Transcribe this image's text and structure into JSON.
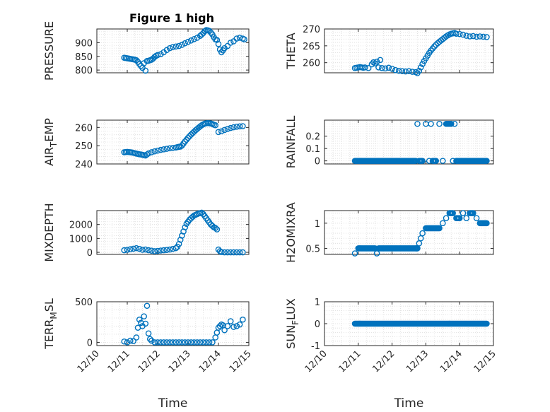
{
  "figure": {
    "title": "Figure 1 high",
    "marker_color": "#0072bd"
  },
  "chart_data": [
    {
      "type": "scatter",
      "panel": "pressure",
      "title": "Figure 1 high",
      "ylabel": "PRESSURE",
      "xlabel": "",
      "xlim": [
        10,
        15
      ],
      "ylim": [
        790,
        950
      ],
      "yticks": [
        800,
        850,
        900
      ],
      "ytick_labels": [
        "800",
        "850",
        "900"
      ],
      "xticks": [
        10,
        11,
        12,
        13,
        14,
        15
      ],
      "xtick_labels": [],
      "grid": true,
      "x": [
        10.9,
        10.95,
        11.0,
        11.05,
        11.1,
        11.15,
        11.2,
        11.25,
        11.3,
        11.35,
        11.4,
        11.45,
        11.5,
        11.55,
        11.6,
        11.65,
        11.7,
        11.75,
        11.8,
        11.85,
        11.9,
        11.95,
        12.0,
        12.1,
        12.2,
        12.3,
        12.4,
        12.5,
        12.6,
        12.7,
        12.8,
        12.9,
        13.0,
        13.1,
        13.2,
        13.3,
        13.4,
        13.45,
        13.5,
        13.55,
        13.6,
        13.65,
        13.7,
        13.75,
        13.8,
        13.85,
        13.9,
        13.95,
        14.0,
        14.05,
        14.1,
        14.15,
        14.2,
        14.3,
        14.4,
        14.5,
        14.6,
        14.7,
        14.8,
        14.85
      ],
      "y": [
        845,
        844,
        843,
        842,
        841,
        840,
        839,
        838,
        836,
        830,
        822,
        815,
        808,
        825,
        798,
        833,
        834,
        836,
        838,
        842,
        848,
        852,
        855,
        858,
        865,
        873,
        880,
        884,
        886,
        888,
        892,
        898,
        903,
        908,
        913,
        918,
        925,
        930,
        935,
        942,
        946,
        945,
        943,
        937,
        930,
        920,
        912,
        910,
        895,
        875,
        865,
        872,
        880,
        888,
        900,
        905,
        915,
        918,
        915,
        912
      ]
    },
    {
      "type": "scatter",
      "panel": "theta",
      "ylabel": "THETA",
      "xlabel": "",
      "xlim": [
        10,
        15
      ],
      "ylim": [
        257,
        270
      ],
      "yticks": [
        260,
        265,
        270
      ],
      "ytick_labels": [
        "260",
        "265",
        "270"
      ],
      "xticks": [
        10,
        11,
        12,
        13,
        14,
        15
      ],
      "xtick_labels": [],
      "grid": true,
      "x": [
        10.9,
        10.95,
        11.0,
        11.05,
        11.1,
        11.15,
        11.2,
        11.3,
        11.4,
        11.45,
        11.5,
        11.55,
        11.6,
        11.65,
        11.7,
        11.8,
        11.9,
        12.0,
        12.1,
        12.2,
        12.3,
        12.4,
        12.5,
        12.6,
        12.7,
        12.75,
        12.8,
        12.85,
        12.9,
        12.95,
        13.0,
        13.05,
        13.1,
        13.15,
        13.2,
        13.25,
        13.3,
        13.35,
        13.4,
        13.45,
        13.5,
        13.55,
        13.6,
        13.65,
        13.7,
        13.75,
        13.8,
        13.85,
        13.9,
        14.0,
        14.1,
        14.2,
        14.3,
        14.4,
        14.5,
        14.6,
        14.7,
        14.8
      ],
      "y": [
        258.4,
        258.5,
        258.6,
        258.7,
        258.6,
        258.5,
        258.6,
        258.4,
        259.5,
        260.1,
        259.8,
        260.3,
        258.6,
        260.8,
        258.4,
        258.3,
        258.5,
        258.2,
        257.8,
        257.6,
        257.5,
        257.4,
        257.5,
        257.3,
        257.2,
        256.9,
        257.6,
        258.6,
        259.6,
        260.5,
        261.3,
        262.1,
        262.9,
        263.6,
        264.2,
        264.8,
        265.3,
        265.8,
        266.2,
        266.6,
        267.0,
        267.4,
        267.8,
        268.1,
        268.4,
        268.6,
        268.7,
        268.8,
        268.6,
        268.5,
        268.3,
        268.0,
        267.8,
        267.9,
        267.7,
        267.8,
        267.7,
        267.6
      ]
    },
    {
      "type": "scatter",
      "panel": "air_temp",
      "ylabel": "AIR_TEMP",
      "ylabel_parts": [
        "AIR",
        "T",
        "EMP"
      ],
      "xlabel": "",
      "xlim": [
        10,
        15
      ],
      "ylim": [
        240,
        264
      ],
      "yticks": [
        240,
        250,
        260
      ],
      "ytick_labels": [
        "240",
        "250",
        "260"
      ],
      "xticks": [
        10,
        11,
        12,
        13,
        14,
        15
      ],
      "xtick_labels": [],
      "grid": true,
      "x": [
        10.9,
        10.95,
        11.0,
        11.05,
        11.1,
        11.15,
        11.2,
        11.25,
        11.3,
        11.35,
        11.4,
        11.45,
        11.5,
        11.55,
        11.6,
        11.65,
        11.7,
        11.8,
        11.9,
        12.0,
        12.1,
        12.2,
        12.3,
        12.4,
        12.5,
        12.6,
        12.65,
        12.7,
        12.75,
        12.8,
        12.85,
        12.9,
        12.95,
        13.0,
        13.05,
        13.1,
        13.15,
        13.2,
        13.25,
        13.3,
        13.35,
        13.4,
        13.45,
        13.5,
        13.55,
        13.6,
        13.65,
        13.7,
        13.75,
        13.8,
        13.85,
        13.9,
        14.0,
        14.1,
        14.2,
        14.3,
        14.4,
        14.5,
        14.6,
        14.7,
        14.8
      ],
      "y": [
        246.4,
        246.5,
        246.6,
        246.5,
        246.4,
        246.3,
        246.1,
        245.9,
        245.7,
        245.5,
        245.3,
        245.2,
        245.0,
        244.8,
        244.6,
        245.2,
        245.8,
        246.4,
        246.9,
        247.3,
        247.7,
        248.0,
        248.3,
        248.6,
        248.8,
        249.0,
        249.2,
        249.4,
        249.5,
        250.1,
        251.2,
        252.3,
        253.3,
        254.3,
        255.2,
        256.1,
        256.9,
        257.7,
        258.5,
        259.2,
        259.9,
        260.6,
        261.2,
        261.7,
        262.1,
        262.3,
        262.4,
        262.3,
        262.2,
        261.9,
        261.5,
        261.2,
        257.5,
        257.9,
        258.6,
        259.2,
        259.7,
        260.1,
        260.4,
        260.6,
        260.7
      ]
    },
    {
      "type": "scatter",
      "panel": "rainfall",
      "ylabel": "RAINFALL",
      "xlabel": "",
      "xlim": [
        10,
        15
      ],
      "ylim": [
        -0.025,
        0.33
      ],
      "yticks": [
        0,
        0.1,
        0.2
      ],
      "ytick_labels": [
        "0",
        "0.1",
        "0.2"
      ],
      "xticks": [
        10,
        11,
        12,
        13,
        14,
        15
      ],
      "xtick_labels": [],
      "grid": true,
      "x": [
        10.9,
        11.0,
        11.1,
        11.2,
        11.3,
        11.4,
        11.5,
        11.6,
        11.7,
        11.8,
        11.9,
        12.0,
        12.1,
        12.2,
        12.3,
        12.4,
        12.5,
        12.6,
        12.7,
        12.75,
        12.8,
        12.9,
        13.0,
        13.1,
        13.15,
        13.2,
        13.3,
        13.4,
        13.5,
        13.6,
        13.65,
        13.7,
        13.75,
        13.8,
        13.85,
        13.9,
        14.0,
        14.1,
        14.2,
        14.3,
        14.4,
        14.5,
        14.6,
        14.7,
        14.8
      ],
      "y": [
        0,
        0,
        0,
        0,
        0,
        0,
        0,
        0,
        0,
        0,
        0,
        0,
        0,
        0,
        0,
        0,
        0,
        0,
        0,
        0.3,
        0,
        0,
        0.3,
        0,
        0.3,
        0,
        0,
        0.3,
        0,
        0.3,
        0.3,
        0.3,
        0.3,
        0,
        0.3,
        0,
        0,
        0,
        0,
        0,
        0,
        0,
        0,
        0,
        0
      ]
    },
    {
      "type": "scatter",
      "panel": "mixdepth",
      "ylabel": "MIXDEPTH",
      "xlabel": "",
      "xlim": [
        10,
        15
      ],
      "ylim": [
        -150,
        3000
      ],
      "yticks": [
        0,
        1000,
        2000
      ],
      "ytick_labels": [
        "0",
        "1000",
        "2000"
      ],
      "xticks": [
        10,
        11,
        12,
        13,
        14,
        15
      ],
      "xtick_labels": [],
      "grid": true,
      "x": [
        10.9,
        11.0,
        11.1,
        11.2,
        11.3,
        11.4,
        11.5,
        11.6,
        11.7,
        11.8,
        11.9,
        12.0,
        12.1,
        12.2,
        12.3,
        12.4,
        12.5,
        12.6,
        12.65,
        12.7,
        12.75,
        12.8,
        12.85,
        12.9,
        12.95,
        13.0,
        13.05,
        13.1,
        13.15,
        13.2,
        13.25,
        13.3,
        13.35,
        13.4,
        13.45,
        13.5,
        13.55,
        13.6,
        13.65,
        13.7,
        13.75,
        13.8,
        13.85,
        13.9,
        13.95,
        14.0,
        14.05,
        14.1,
        14.2,
        14.3,
        14.4,
        14.5,
        14.6,
        14.7,
        14.8
      ],
      "y": [
        150,
        180,
        220,
        260,
        300,
        250,
        180,
        200,
        150,
        120,
        80,
        100,
        130,
        150,
        170,
        200,
        250,
        300,
        400,
        600,
        900,
        1200,
        1500,
        1800,
        2050,
        2200,
        2350,
        2450,
        2550,
        2650,
        2700,
        2750,
        2800,
        2820,
        2850,
        2750,
        2600,
        2450,
        2300,
        2150,
        2000,
        1900,
        1800,
        1750,
        1650,
        200,
        80,
        20,
        0,
        0,
        0,
        0,
        0,
        0,
        0
      ]
    },
    {
      "type": "scatter",
      "panel": "h2omixra",
      "ylabel": "H2OMIXRA",
      "xlabel": "",
      "xlim": [
        10,
        15
      ],
      "ylim": [
        0.38,
        1.25
      ],
      "yticks": [
        0.5,
        1
      ],
      "ytick_labels": [
        "0.5",
        "1"
      ],
      "xticks": [
        10,
        11,
        12,
        13,
        14,
        15
      ],
      "xtick_labels": [],
      "grid": true,
      "x": [
        10.9,
        11.0,
        11.1,
        11.2,
        11.3,
        11.4,
        11.5,
        11.55,
        11.6,
        11.7,
        11.8,
        11.9,
        12.0,
        12.1,
        12.2,
        12.3,
        12.4,
        12.5,
        12.6,
        12.7,
        12.75,
        12.8,
        12.85,
        12.9,
        13.0,
        13.1,
        13.2,
        13.3,
        13.4,
        13.5,
        13.6,
        13.7,
        13.8,
        13.9,
        14.0,
        14.1,
        14.2,
        14.3,
        14.4,
        14.5,
        14.6,
        14.7,
        14.8
      ],
      "y": [
        0.4,
        0.5,
        0.5,
        0.5,
        0.5,
        0.5,
        0.5,
        0.4,
        0.5,
        0.5,
        0.5,
        0.5,
        0.5,
        0.5,
        0.5,
        0.5,
        0.5,
        0.5,
        0.5,
        0.5,
        0.5,
        0.6,
        0.7,
        0.8,
        0.9,
        0.9,
        0.9,
        0.9,
        0.9,
        1.0,
        1.1,
        1.2,
        1.2,
        1.1,
        1.1,
        1.2,
        1.1,
        1.2,
        1.2,
        1.1,
        1.0,
        1.0,
        1.0
      ]
    },
    {
      "type": "scatter",
      "panel": "terr_msl",
      "ylabel": "TERR_MSL",
      "ylabel_parts": [
        "TERR",
        "M",
        "SL"
      ],
      "xlabel": "Time",
      "xlim": [
        10,
        15
      ],
      "ylim": [
        -40,
        500
      ],
      "yticks": [
        0,
        500
      ],
      "ytick_labels": [
        "0",
        "500"
      ],
      "xticks": [
        10,
        11,
        12,
        13,
        14,
        15
      ],
      "xtick_labels": [
        "12/10",
        "12/11",
        "12/12",
        "12/13",
        "12/14",
        "12/15"
      ],
      "grid": true,
      "x": [
        10.9,
        11.0,
        11.1,
        11.2,
        11.3,
        11.35,
        11.4,
        11.45,
        11.5,
        11.55,
        11.6,
        11.65,
        11.7,
        11.75,
        11.8,
        11.9,
        12.0,
        12.1,
        12.2,
        12.3,
        12.4,
        12.5,
        12.6,
        12.7,
        12.8,
        12.9,
        13.0,
        13.1,
        13.2,
        13.3,
        13.4,
        13.5,
        13.6,
        13.7,
        13.8,
        13.9,
        13.95,
        14.0,
        14.05,
        14.1,
        14.15,
        14.2,
        14.3,
        14.4,
        14.5,
        14.6,
        14.7,
        14.8
      ],
      "y": [
        10,
        0,
        20,
        15,
        60,
        180,
        280,
        240,
        200,
        320,
        230,
        450,
        110,
        40,
        20,
        0,
        0,
        0,
        0,
        0,
        0,
        0,
        0,
        0,
        0,
        0,
        0,
        0,
        0,
        0,
        0,
        0,
        0,
        0,
        0,
        60,
        120,
        180,
        200,
        220,
        210,
        150,
        200,
        260,
        190,
        200,
        220,
        280
      ]
    },
    {
      "type": "scatter",
      "panel": "sun_flux",
      "ylabel": "SUN_FLUX",
      "ylabel_parts": [
        "SUN",
        "F",
        "LUX"
      ],
      "xlabel": "Time",
      "xlim": [
        10,
        15
      ],
      "ylim": [
        -1,
        1
      ],
      "yticks": [
        -1,
        0,
        1
      ],
      "ytick_labels": [
        "-1",
        "0",
        "1"
      ],
      "xticks": [
        10,
        11,
        12,
        13,
        14,
        15
      ],
      "xtick_labels": [
        "12/10",
        "12/11",
        "12/12",
        "12/13",
        "12/14",
        "12/15"
      ],
      "grid": true,
      "x": [
        10.9,
        11.0,
        11.1,
        11.2,
        11.3,
        11.4,
        11.5,
        11.6,
        11.7,
        11.8,
        11.9,
        12.0,
        12.1,
        12.2,
        12.3,
        12.4,
        12.5,
        12.6,
        12.7,
        12.8,
        12.9,
        13.0,
        13.1,
        13.2,
        13.3,
        13.4,
        13.5,
        13.6,
        13.7,
        13.8,
        13.9,
        14.0,
        14.1,
        14.2,
        14.3,
        14.4,
        14.5,
        14.6,
        14.7,
        14.8
      ],
      "y": [
        0,
        0,
        0,
        0,
        0,
        0,
        0,
        0,
        0,
        0,
        0,
        0,
        0,
        0,
        0,
        0,
        0,
        0,
        0,
        0,
        0,
        0,
        0,
        0,
        0,
        0,
        0,
        0,
        0,
        0,
        0,
        0,
        0,
        0,
        0,
        0,
        0,
        0,
        0,
        0
      ]
    }
  ]
}
